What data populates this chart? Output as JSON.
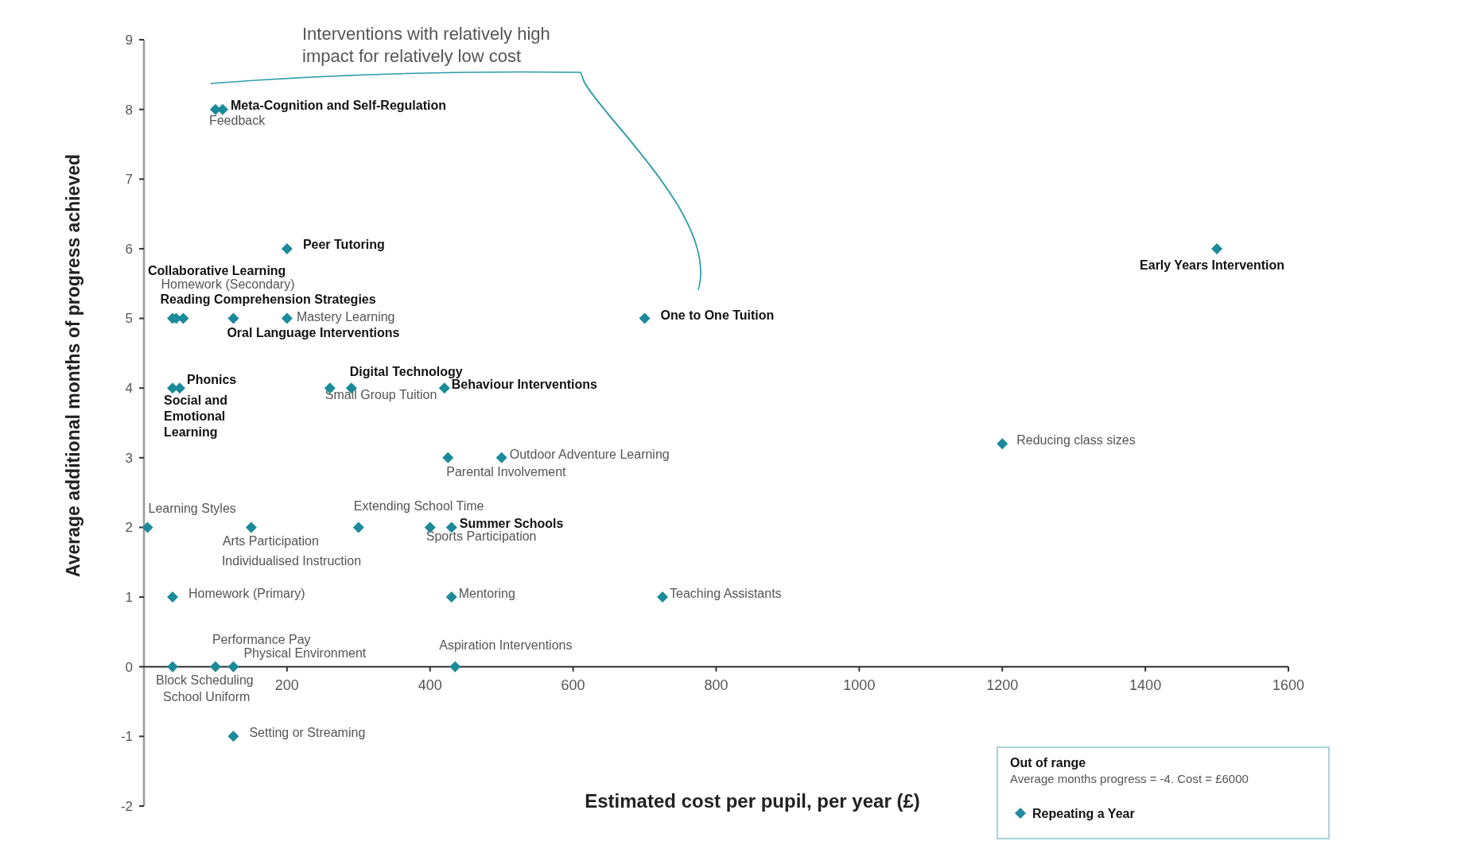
{
  "chart_data": {
    "type": "scatter",
    "xlabel": "Estimated cost per pupil, per year (£)",
    "ylabel": "Average additional months of progress achieved",
    "xlim": [
      0,
      1600
    ],
    "xticks": [
      200,
      400,
      600,
      800,
      1000,
      1200,
      1400,
      1600
    ],
    "ylim": [
      -2,
      9
    ],
    "yticks": [
      -2,
      -1,
      0,
      1,
      2,
      3,
      4,
      5,
      6,
      7,
      8,
      9
    ],
    "grid": false,
    "marker": "diamond",
    "series": [
      {
        "color": "#1b8a99",
        "x": [
          110,
          100,
          200,
          40,
          45,
          55,
          125,
          200,
          50,
          40,
          290,
          260,
          420,
          425,
          500,
          5,
          150,
          300,
          400,
          430,
          40,
          430,
          725,
          100,
          125,
          435,
          40,
          125,
          700,
          1500,
          1200
        ],
        "values": [
          8,
          8,
          6,
          5,
          5,
          5,
          5,
          5,
          4,
          4,
          4,
          4,
          4,
          3,
          3,
          2,
          2,
          2,
          2,
          2,
          1,
          1,
          1,
          0,
          0,
          0,
          0,
          -1,
          5,
          6,
          3.2
        ]
      }
    ],
    "annotations": [
      {
        "text": "Meta-Cognition and Self-Regulation",
        "x": 110,
        "y": 8
      },
      {
        "text": "Feedback",
        "x": 100,
        "y": 8
      },
      {
        "text": "Peer Tutoring",
        "x": 200,
        "y": 6
      },
      {
        "text": "Homework (Secondary)",
        "x": 45,
        "y": 5
      },
      {
        "text": "Reading Comprehension Strategies",
        "x": 55,
        "y": 5
      },
      {
        "text": "Oral Language Interventions",
        "x": 125,
        "y": 5
      },
      {
        "text": "Mastery Learning",
        "x": 200,
        "y": 5
      },
      {
        "text": "Phonics",
        "x": 50,
        "y": 4
      },
      {
        "text": "Social and Emotional Learning",
        "x": 40,
        "y": 4
      },
      {
        "text": "Digital Technology",
        "x": 290,
        "y": 4
      },
      {
        "text": "Small Group Tuition",
        "x": 260,
        "y": 4
      },
      {
        "text": "Behaviour Interventions",
        "x": 420,
        "y": 4
      },
      {
        "text": "Parental Involvement",
        "x": 425,
        "y": 3
      },
      {
        "text": "Outdoor Adventure Learning",
        "x": 500,
        "y": 3
      },
      {
        "text": "Learning Styles",
        "x": 5,
        "y": 2
      },
      {
        "text": "Arts Participation",
        "x": 150,
        "y": 2
      },
      {
        "text": "Individualised Instruction",
        "x": 150,
        "y": 2
      },
      {
        "text": "Extending School Time",
        "x": 300,
        "y": 2
      },
      {
        "text": "Sports Participation",
        "x": 400,
        "y": 2
      },
      {
        "text": "Summer Schools",
        "x": 430,
        "y": 2
      },
      {
        "text": "Homework (Primary)",
        "x": 40,
        "y": 1
      },
      {
        "text": "Mentoring",
        "x": 430,
        "y": 1
      },
      {
        "text": "Teaching Assistants",
        "x": 725,
        "y": 1
      },
      {
        "text": "Performance Pay",
        "x": 100,
        "y": 0
      },
      {
        "text": "Physical Environment",
        "x": 125,
        "y": 0
      },
      {
        "text": "Aspiration Interventions",
        "x": 435,
        "y": 0
      },
      {
        "text": "Block Scheduling",
        "x": 40,
        "y": 0
      },
      {
        "text": "School Uniform",
        "x": 40,
        "y": 0
      },
      {
        "text": "Setting or Streaming",
        "x": 125,
        "y": -1
      },
      {
        "text": "One to One Tuition",
        "x": 700,
        "y": 5
      },
      {
        "text": "Early Years Intervention",
        "x": 1500,
        "y": 6
      },
      {
        "text": "Reducing class sizes",
        "x": 1200,
        "y": 3.2
      },
      "Interventions with relatively high impact for relatively low cost",
      "Collaborative Learning",
      "Out of range",
      "Average months progress = -4. Cost = £6000",
      "Repeating a Year"
    ]
  }
}
